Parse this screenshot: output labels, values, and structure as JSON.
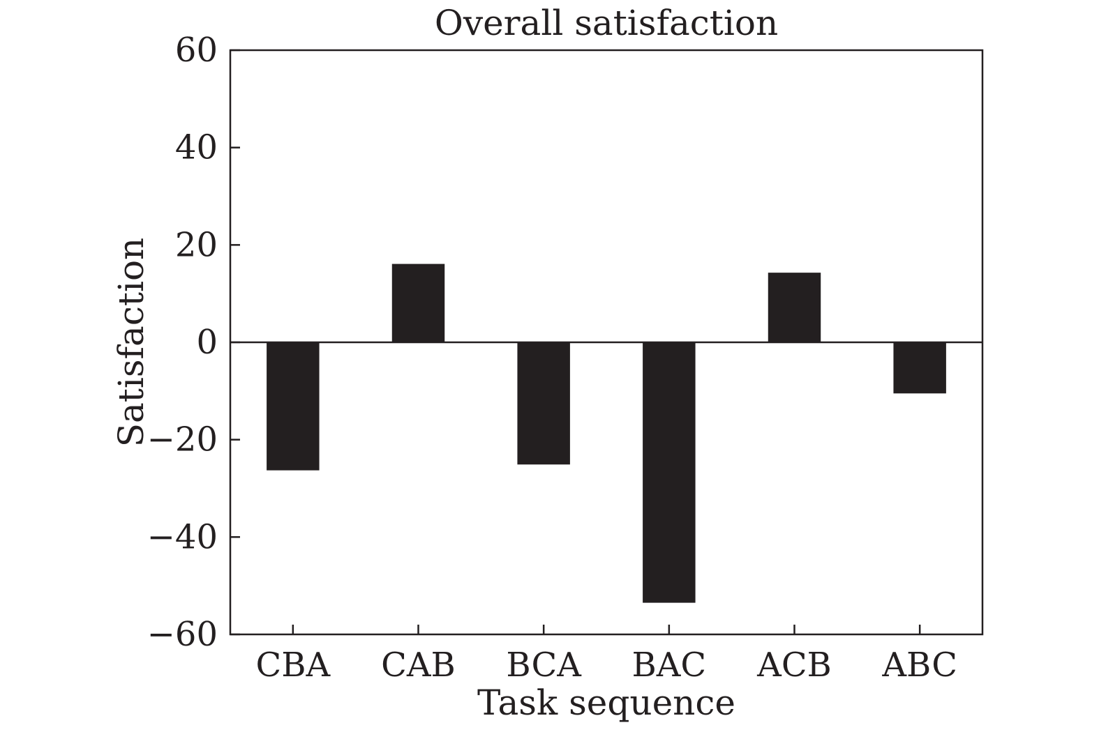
{
  "chart_data": {
    "type": "bar",
    "title": "Overall satisfaction",
    "xlabel": "Task sequence",
    "ylabel": "Satisfaction",
    "categories": [
      "CBA",
      "CAB",
      "BCA",
      "BAC",
      "ACB",
      "ABC"
    ],
    "values": [
      -26.3,
      16.1,
      -25.1,
      -53.5,
      14.3,
      -10.5
    ],
    "ylim": [
      -60,
      60
    ],
    "yticks": [
      60,
      40,
      20,
      0,
      -20,
      -40,
      -60
    ],
    "ytick_labels": [
      "60",
      "40",
      "20",
      "0",
      "−20",
      "−40",
      "−60"
    ],
    "grid": false,
    "legend": "none",
    "bar_color": "#231f20",
    "axis_color": "#231f20"
  }
}
